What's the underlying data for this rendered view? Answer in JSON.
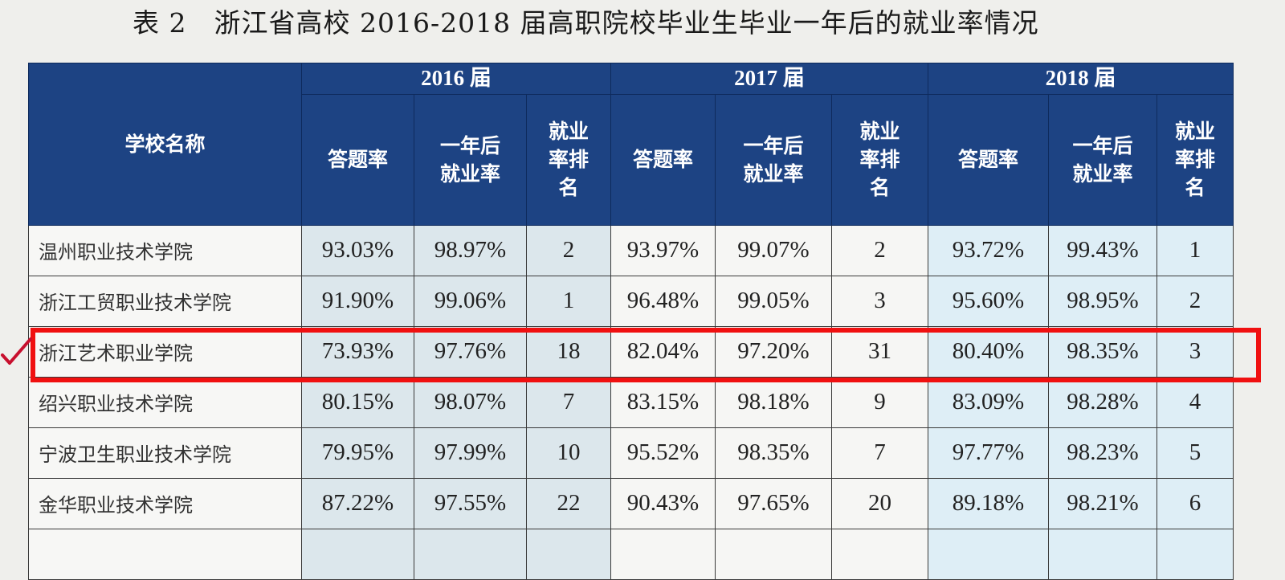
{
  "title": "表 2　浙江省高校 2016-2018 届高职院校毕业生毕业一年后的就业率情况",
  "header": {
    "school_name": "学校名称",
    "years": [
      "2016 届",
      "2017 届",
      "2018 届"
    ],
    "sub_columns": [
      "答题率",
      "一年后就业率",
      "就业率排名"
    ]
  },
  "rows": [
    {
      "school": "温州职业技术学院",
      "values": [
        "93.03%",
        "98.97%",
        "2",
        "93.97%",
        "99.07%",
        "2",
        "93.72%",
        "99.43%",
        "1"
      ]
    },
    {
      "school": "浙江工贸职业技术学院",
      "values": [
        "91.90%",
        "99.06%",
        "1",
        "96.48%",
        "99.05%",
        "3",
        "95.60%",
        "98.95%",
        "2"
      ]
    },
    {
      "school": "浙江艺术职业学院",
      "values": [
        "73.93%",
        "97.76%",
        "18",
        "82.04%",
        "97.20%",
        "31",
        "80.40%",
        "98.35%",
        "3"
      ],
      "highlighted": true
    },
    {
      "school": "绍兴职业技术学院",
      "values": [
        "80.15%",
        "98.07%",
        "7",
        "83.15%",
        "98.18%",
        "9",
        "83.09%",
        "98.28%",
        "4"
      ]
    },
    {
      "school": "宁波卫生职业技术学院",
      "values": [
        "79.95%",
        "97.99%",
        "10",
        "95.52%",
        "98.35%",
        "7",
        "97.77%",
        "98.23%",
        "5"
      ]
    },
    {
      "school": "金华职业技术学院",
      "values": [
        "87.22%",
        "97.55%",
        "22",
        "90.43%",
        "97.65%",
        "20",
        "89.18%",
        "98.21%",
        "6"
      ]
    }
  ],
  "annotation": {
    "highlight_color": "#f01010",
    "check_mark_color": "#c8102e",
    "check_icon": "check-mark-icon"
  },
  "colors": {
    "header_bg": "#1d4383",
    "col2016_bg": "#dce7ec",
    "col2018_bg": "#deeef6"
  }
}
